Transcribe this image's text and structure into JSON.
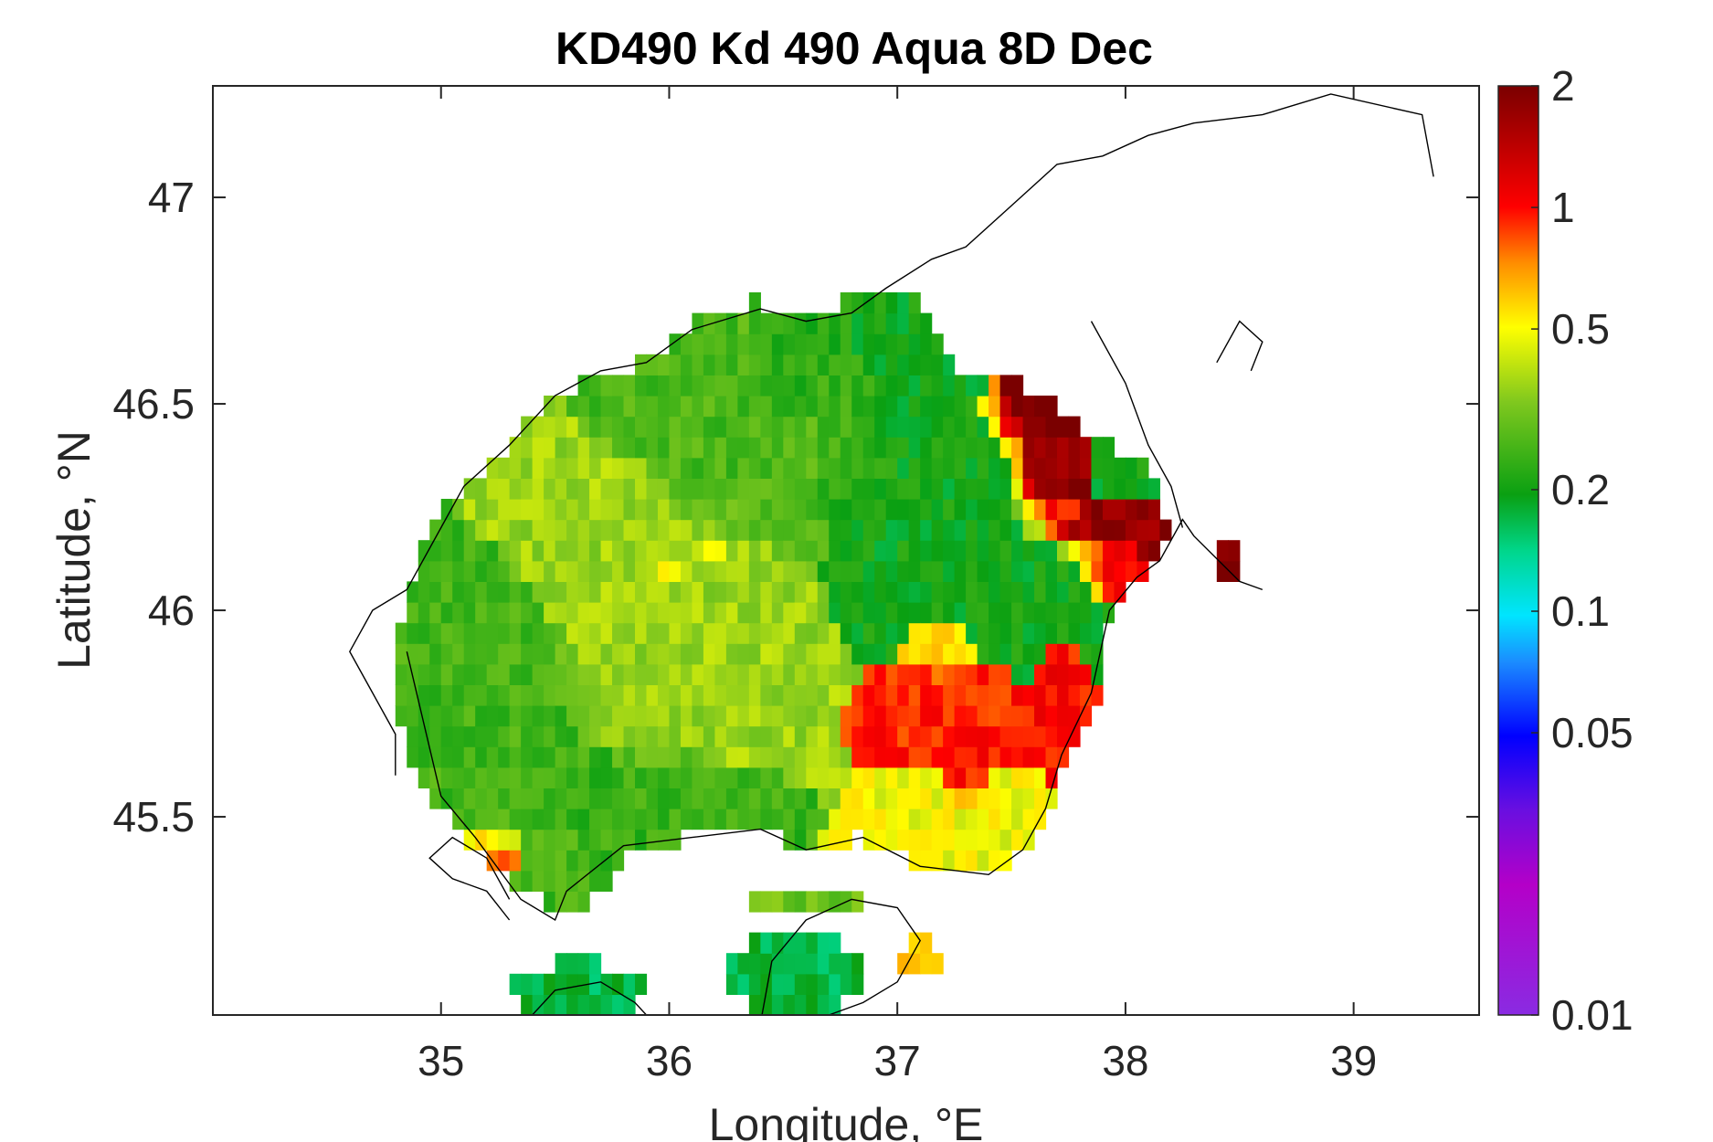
{
  "chart_data": {
    "type": "heatmap",
    "title": "KD490 Kd 490 Aqua 8D Dec",
    "xlabel": "Longitude, °E",
    "ylabel": "Latitude, °N",
    "xlim": [
      34.0,
      39.55
    ],
    "ylim": [
      45.02,
      47.27
    ],
    "x_ticks": [
      35,
      36,
      37,
      38,
      39
    ],
    "x_tick_labels": [
      "35",
      "36",
      "37",
      "38",
      "39"
    ],
    "y_ticks": [
      45.5,
      46,
      46.5,
      47
    ],
    "y_tick_labels": [
      "45.5",
      "46",
      "46.5",
      "47"
    ],
    "grid": false,
    "legend": "none",
    "colorbar": {
      "scale": "log",
      "min": 0.01,
      "max": 2,
      "ticks": [
        0.01,
        0.05,
        0.1,
        0.2,
        0.5,
        1,
        2
      ],
      "tick_labels": [
        "0.01",
        "0.05",
        "0.1",
        "0.2",
        "0.5",
        "1",
        "2"
      ],
      "colormap": "jet-like rainbow from violet (low) through blue, cyan, green, yellow, orange, red to dark red (high)"
    },
    "grid_cell_deg": 0.05,
    "sea_mask": [
      [
        35.35,
        45.33
      ],
      [
        35.5,
        45.28
      ],
      [
        35.7,
        45.3
      ],
      [
        35.8,
        45.42
      ],
      [
        36.1,
        45.45
      ],
      [
        36.4,
        45.47
      ],
      [
        36.6,
        45.42
      ],
      [
        36.85,
        45.45
      ],
      [
        37.1,
        45.38
      ],
      [
        37.4,
        45.36
      ],
      [
        37.6,
        45.45
      ],
      [
        37.72,
        45.6
      ],
      [
        37.88,
        45.8
      ],
      [
        37.93,
        46.0
      ],
      [
        38.1,
        46.1
      ],
      [
        38.2,
        46.2
      ],
      [
        38.1,
        46.35
      ],
      [
        37.85,
        46.42
      ],
      [
        37.55,
        46.55
      ],
      [
        37.3,
        46.55
      ],
      [
        37.1,
        46.75
      ],
      [
        36.9,
        46.8
      ],
      [
        36.6,
        46.7
      ],
      [
        36.4,
        46.75
      ],
      [
        36.1,
        46.7
      ],
      [
        35.9,
        46.6
      ],
      [
        35.7,
        46.58
      ],
      [
        35.5,
        46.52
      ],
      [
        35.3,
        46.4
      ],
      [
        35.1,
        46.3
      ],
      [
        34.95,
        46.2
      ],
      [
        34.85,
        46.05
      ],
      [
        34.8,
        45.9
      ],
      [
        34.83,
        45.7
      ],
      [
        34.95,
        45.55
      ],
      [
        35.1,
        45.45
      ]
    ],
    "regions": [
      {
        "lon": 36.0,
        "lat": 45.95,
        "rx": 0.55,
        "ry": 0.35,
        "value": 0.36
      },
      {
        "lon": 35.3,
        "lat": 45.7,
        "rx": 0.4,
        "ry": 0.3,
        "value": 0.25
      },
      {
        "lon": 35.9,
        "lat": 45.55,
        "rx": 0.45,
        "ry": 0.12,
        "value": 0.24
      },
      {
        "lon": 36.5,
        "lat": 46.4,
        "rx": 0.55,
        "ry": 0.25,
        "value": 0.26
      },
      {
        "lon": 37.1,
        "lat": 46.35,
        "rx": 0.45,
        "ry": 0.35,
        "value": 0.2
      },
      {
        "lon": 37.55,
        "lat": 46.1,
        "rx": 0.35,
        "ry": 0.2,
        "value": 0.2
      },
      {
        "lon": 36.6,
        "lat": 46.6,
        "rx": 0.2,
        "ry": 0.15,
        "value": 0.22
      },
      {
        "lon": 37.2,
        "lat": 45.75,
        "rx": 0.28,
        "ry": 0.12,
        "value": 0.95
      },
      {
        "lon": 37.3,
        "lat": 45.6,
        "rx": 0.07,
        "ry": 0.07,
        "value": 1.0
      },
      {
        "lon": 37.2,
        "lat": 45.9,
        "rx": 0.15,
        "ry": 0.06,
        "value": 0.55
      },
      {
        "lon": 37.7,
        "lat": 45.8,
        "rx": 0.1,
        "ry": 0.12,
        "value": 1.0
      },
      {
        "lon": 37.25,
        "lat": 45.45,
        "rx": 0.33,
        "ry": 0.12,
        "value": 0.48
      },
      {
        "lon": 37.55,
        "lat": 46.5,
        "rx": 0.18,
        "ry": 0.13,
        "value": 2.0
      },
      {
        "lon": 37.65,
        "lat": 46.3,
        "rx": 0.15,
        "ry": 0.1,
        "value": 1.7
      },
      {
        "lon": 37.8,
        "lat": 46.2,
        "rx": 0.25,
        "ry": 0.06,
        "value": 1.8
      },
      {
        "lon": 37.9,
        "lat": 46.1,
        "rx": 0.12,
        "ry": 0.06,
        "value": 1.1
      },
      {
        "lon": 38.45,
        "lat": 46.1,
        "rx": 0.06,
        "ry": 0.05,
        "value": 1.8
      },
      {
        "lon": 35.2,
        "lat": 45.42,
        "rx": 0.15,
        "ry": 0.06,
        "value": 0.75
      },
      {
        "lon": 36.2,
        "lat": 46.15,
        "rx": 0.05,
        "ry": 0.03,
        "value": 0.7
      },
      {
        "lon": 36.0,
        "lat": 46.1,
        "rx": 0.06,
        "ry": 0.03,
        "value": 0.8
      },
      {
        "lon": 35.6,
        "lat": 45.08,
        "rx": 0.3,
        "ry": 0.07,
        "value": 0.17
      },
      {
        "lon": 36.55,
        "lat": 45.12,
        "rx": 0.3,
        "ry": 0.1,
        "value": 0.17
      },
      {
        "lon": 36.6,
        "lat": 45.3,
        "rx": 0.25,
        "ry": 0.05,
        "value": 0.3
      },
      {
        "lon": 37.1,
        "lat": 45.15,
        "rx": 0.1,
        "ry": 0.05,
        "value": 0.6
      }
    ],
    "coastlines": [
      [
        [
          34.85,
          45.9
        ],
        [
          35.0,
          45.55
        ],
        [
          35.15,
          45.45
        ],
        [
          35.35,
          45.3
        ],
        [
          35.5,
          45.25
        ],
        [
          35.55,
          45.32
        ],
        [
          35.8,
          45.43
        ],
        [
          36.1,
          45.45
        ],
        [
          36.4,
          45.47
        ],
        [
          36.6,
          45.42
        ],
        [
          36.85,
          45.45
        ],
        [
          37.1,
          45.38
        ],
        [
          37.4,
          45.36
        ],
        [
          37.55,
          45.42
        ],
        [
          37.65,
          45.52
        ],
        [
          37.72,
          45.65
        ],
        [
          37.85,
          45.8
        ],
        [
          37.93,
          46.0
        ],
        [
          38.05,
          46.08
        ],
        [
          38.15,
          46.12
        ],
        [
          38.25,
          46.22
        ],
        [
          38.3,
          46.18
        ],
        [
          38.5,
          46.07
        ],
        [
          38.6,
          46.05
        ]
      ],
      [
        [
          34.85,
          46.05
        ],
        [
          35.0,
          46.2
        ],
        [
          35.1,
          46.3
        ],
        [
          35.3,
          46.4
        ],
        [
          35.5,
          46.52
        ],
        [
          35.7,
          46.58
        ],
        [
          35.9,
          46.6
        ],
        [
          36.1,
          46.68
        ],
        [
          36.4,
          46.73
        ],
        [
          36.6,
          46.7
        ],
        [
          36.8,
          46.72
        ],
        [
          36.95,
          46.78
        ],
        [
          37.15,
          46.85
        ],
        [
          37.3,
          46.88
        ],
        [
          37.5,
          46.98
        ],
        [
          37.7,
          47.08
        ],
        [
          37.9,
          47.1
        ],
        [
          38.1,
          47.15
        ],
        [
          38.3,
          47.18
        ],
        [
          38.6,
          47.2
        ],
        [
          38.9,
          47.25
        ],
        [
          39.3,
          47.2
        ],
        [
          39.35,
          47.05
        ]
      ],
      [
        [
          37.85,
          46.7
        ],
        [
          38.0,
          46.55
        ],
        [
          38.1,
          46.4
        ],
        [
          38.2,
          46.3
        ],
        [
          38.25,
          46.2
        ]
      ],
      [
        [
          38.4,
          46.6
        ],
        [
          38.5,
          46.7
        ],
        [
          38.6,
          46.65
        ],
        [
          38.55,
          46.58
        ]
      ],
      [
        [
          35.3,
          45.3
        ],
        [
          35.2,
          45.4
        ],
        [
          35.05,
          45.45
        ],
        [
          34.95,
          45.4
        ],
        [
          35.05,
          45.35
        ],
        [
          35.2,
          45.32
        ],
        [
          35.3,
          45.25
        ]
      ],
      [
        [
          34.85,
          46.05
        ],
        [
          34.7,
          46.0
        ],
        [
          34.6,
          45.9
        ],
        [
          34.7,
          45.8
        ],
        [
          34.8,
          45.7
        ],
        [
          34.8,
          45.6
        ]
      ],
      [
        [
          36.4,
          45.0
        ],
        [
          36.45,
          45.15
        ],
        [
          36.6,
          45.25
        ],
        [
          36.8,
          45.3
        ],
        [
          37.0,
          45.28
        ],
        [
          37.1,
          45.2
        ],
        [
          37.0,
          45.1
        ],
        [
          36.85,
          45.05
        ],
        [
          36.7,
          45.02
        ]
      ],
      [
        [
          35.4,
          45.02
        ],
        [
          35.5,
          45.08
        ],
        [
          35.7,
          45.1
        ],
        [
          35.85,
          45.05
        ],
        [
          35.9,
          45.02
        ]
      ]
    ]
  }
}
